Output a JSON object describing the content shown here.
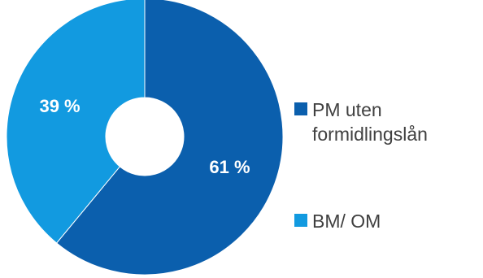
{
  "chart_data": {
    "type": "pie",
    "variant": "donut",
    "title": "",
    "slices": [
      {
        "label": "PM uten formidlingslån",
        "value": 61,
        "display": "61 %",
        "color": "#0b5fad"
      },
      {
        "label": "BM/ OM",
        "value": 39,
        "display": "39 %",
        "color": "#129ae0"
      }
    ],
    "start_angle_deg": 0,
    "direction": "clockwise",
    "legend": "right"
  },
  "legend": {
    "items": [
      {
        "label": "PM uten formidlingslån",
        "color": "#0b5fad"
      },
      {
        "label": "BM/ OM",
        "color": "#129ae0"
      }
    ]
  }
}
